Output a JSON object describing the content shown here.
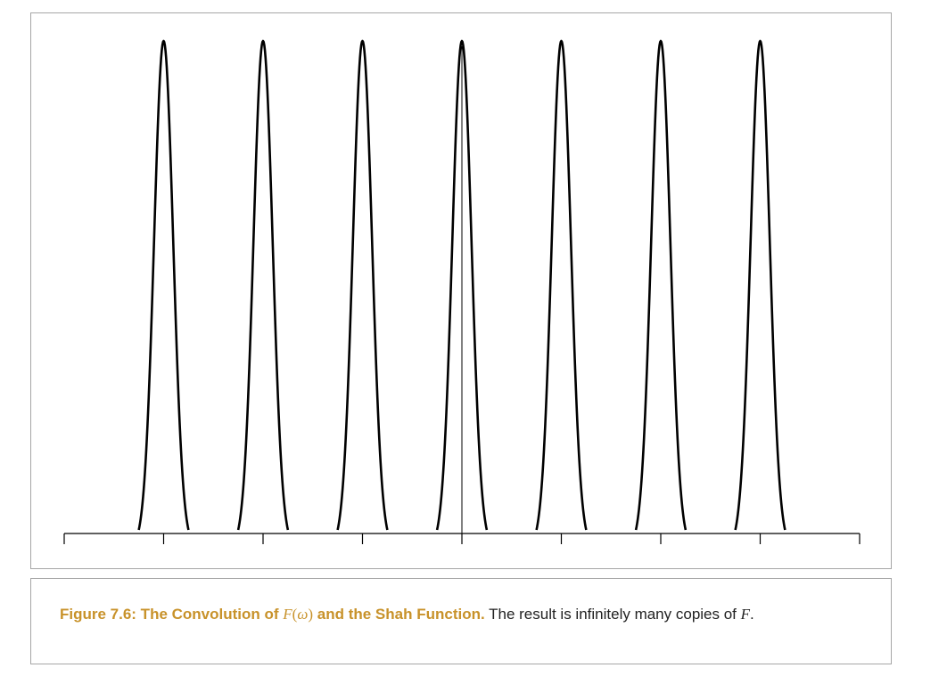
{
  "figure": {
    "peak_count": 7,
    "peak_centers": [
      -3,
      -2,
      -1,
      0,
      1,
      2,
      3
    ],
    "x_range": [
      -4,
      4
    ],
    "tick_positions": [
      -4,
      -3,
      -2,
      -1,
      0,
      1,
      2,
      3,
      4
    ],
    "center_line_at": 0,
    "peak_half_width": 0.25,
    "stroke_color": "#000000"
  },
  "caption": {
    "label_prefix": "Figure 7.6: The Convolution of ",
    "label_math_var": "F",
    "label_math_open": "(",
    "label_math_arg": "ω",
    "label_math_close": ")",
    "label_suffix": " and the Shah Function.",
    "body_text": " The result is infinitely many copies of ",
    "body_math": "F",
    "body_end": "."
  },
  "colors": {
    "label": "#c8922a",
    "text": "#222222",
    "border": "#a6a6a6"
  }
}
